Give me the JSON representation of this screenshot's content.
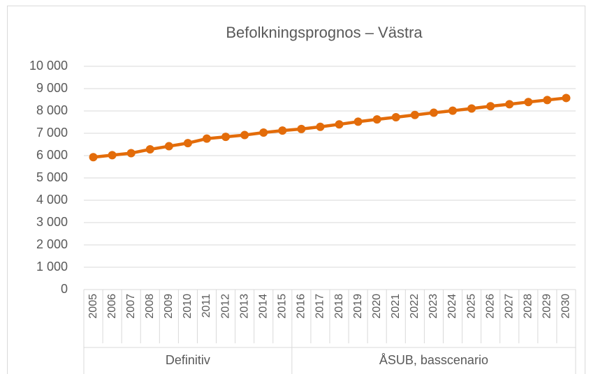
{
  "chart_data": {
    "type": "line",
    "title": "Befolkningsprognos – Västra",
    "categories": [
      "2005",
      "2006",
      "2007",
      "2008",
      "2009",
      "2010",
      "2011",
      "2012",
      "2013",
      "2014",
      "2015",
      "2016",
      "2017",
      "2018",
      "2019",
      "2020",
      "2021",
      "2022",
      "2023",
      "2024",
      "2025",
      "2026",
      "2027",
      "2028",
      "2029",
      "2030"
    ],
    "groups": [
      {
        "label": "Definitiv",
        "span": 11
      },
      {
        "label": "ÅSUB, basscenario",
        "span": 15
      }
    ],
    "series": [
      {
        "name": "Västra",
        "color": "#e36c0a",
        "values": [
          5930,
          6020,
          6110,
          6280,
          6420,
          6560,
          6760,
          6840,
          6920,
          7030,
          7120,
          7190,
          7290,
          7400,
          7520,
          7620,
          7720,
          7820,
          7920,
          8010,
          8110,
          8210,
          8300,
          8400,
          8490,
          8580
        ]
      }
    ],
    "ylim": [
      0,
      10000
    ],
    "yticks": [
      0,
      {
        "value": 1000,
        "label": "1 000"
      },
      {
        "value": 2000,
        "label": "2 000"
      },
      {
        "value": 3000,
        "label": "3 000"
      },
      {
        "value": 4000,
        "label": "4 000"
      },
      {
        "value": 5000,
        "label": "5 000"
      },
      {
        "value": 6000,
        "label": "6 000"
      },
      {
        "value": 7000,
        "label": "7 000"
      },
      {
        "value": 8000,
        "label": "8 000"
      },
      {
        "value": 9000,
        "label": "9 000"
      },
      {
        "value": 10000,
        "label": "10 000"
      }
    ],
    "grid": true
  }
}
